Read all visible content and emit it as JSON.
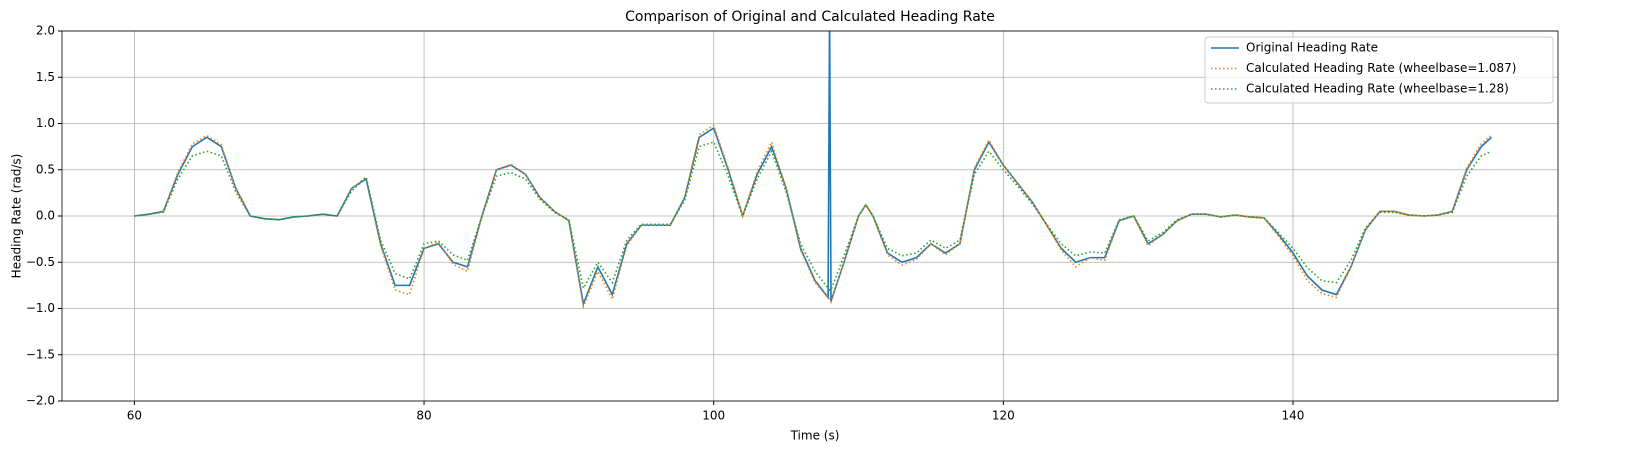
{
  "chart_data": {
    "type": "line",
    "title": "Comparison of Original and Calculated Heading Rate",
    "x_label": "Time (s)",
    "y_label": "Heading Rate (rad/s)",
    "x": [
      60,
      61,
      62,
      63,
      64,
      65,
      66,
      67,
      68,
      69,
      70,
      71,
      72,
      73,
      74,
      75,
      76,
      77,
      78,
      79,
      80,
      81,
      82,
      83,
      84,
      85,
      86,
      87,
      88,
      89,
      90,
      91,
      92,
      93,
      94,
      95,
      96,
      97,
      98,
      99,
      100,
      101,
      102,
      103,
      104,
      105,
      106,
      107,
      107.9,
      108,
      108.1,
      109,
      110,
      110.5,
      111,
      112,
      113,
      114,
      115,
      116,
      117,
      118,
      119,
      120,
      121,
      122,
      123,
      124,
      125,
      126,
      127,
      128,
      129,
      130,
      131,
      132,
      133,
      134,
      135,
      136,
      137,
      138,
      139,
      140,
      141,
      142,
      143,
      144,
      145,
      146,
      147,
      148,
      149,
      150,
      151,
      152,
      153,
      153.7
    ],
    "series": [
      {
        "name": "Original Heading Rate",
        "color": "#1f77b4",
        "style": "solid",
        "values": [
          0,
          0.02,
          0.05,
          0.45,
          0.75,
          0.85,
          0.75,
          0.3,
          0,
          -0.03,
          -0.04,
          -0.01,
          0,
          0.02,
          0,
          0.3,
          0.4,
          -0.3,
          -0.75,
          -0.75,
          -0.35,
          -0.3,
          -0.5,
          -0.55,
          0,
          0.5,
          0.55,
          0.45,
          0.2,
          0.05,
          -0.05,
          -0.95,
          -0.55,
          -0.85,
          -0.3,
          -0.1,
          -0.1,
          -0.1,
          0.2,
          0.85,
          0.95,
          0.5,
          0,
          0.45,
          0.75,
          0.3,
          -0.35,
          -0.7,
          -0.88,
          2.2,
          -0.92,
          -0.5,
          0,
          0.12,
          0,
          -0.4,
          -0.5,
          -0.45,
          -0.3,
          -0.4,
          -0.3,
          0.5,
          0.8,
          0.55,
          0.35,
          0.15,
          -0.1,
          -0.35,
          -0.5,
          -0.45,
          -0.45,
          -0.05,
          0,
          -0.3,
          -0.2,
          -0.05,
          0.02,
          0.02,
          -0.01,
          0.01,
          -0.01,
          -0.02,
          -0.2,
          -0.4,
          -0.65,
          -0.8,
          -0.85,
          -0.55,
          -0.15,
          0.05,
          0.05,
          0.01,
          0,
          0.01,
          0.05,
          0.5,
          0.75,
          0.85
        ]
      },
      {
        "name": "Calculated Heading Rate (wheelbase=1.087)",
        "color": "#ff7f0e",
        "style": "dotted",
        "values": [
          0,
          0.02,
          0.05,
          0.47,
          0.78,
          0.87,
          0.77,
          0.3,
          0,
          -0.03,
          -0.04,
          -0.01,
          0,
          0.02,
          0,
          0.3,
          0.42,
          -0.32,
          -0.8,
          -0.85,
          -0.35,
          -0.28,
          -0.52,
          -0.6,
          0,
          0.5,
          0.56,
          0.45,
          0.2,
          0.05,
          -0.05,
          -0.98,
          -0.6,
          -0.9,
          -0.32,
          -0.1,
          -0.1,
          -0.1,
          0.2,
          0.88,
          0.98,
          0.52,
          0,
          0.48,
          0.8,
          0.3,
          -0.37,
          -0.72,
          -0.88,
          -0.9,
          -0.93,
          -0.5,
          0,
          0.12,
          0,
          -0.42,
          -0.53,
          -0.47,
          -0.3,
          -0.42,
          -0.3,
          0.52,
          0.82,
          0.55,
          0.35,
          0.15,
          -0.1,
          -0.37,
          -0.55,
          -0.45,
          -0.48,
          -0.05,
          0,
          -0.32,
          -0.2,
          -0.05,
          0.02,
          0.02,
          -0.01,
          0.01,
          -0.01,
          -0.02,
          -0.22,
          -0.43,
          -0.7,
          -0.84,
          -0.88,
          -0.55,
          -0.15,
          0.05,
          0.05,
          0.01,
          0,
          0.01,
          0.05,
          0.52,
          0.78,
          0.87
        ]
      },
      {
        "name": "Calculated Heading Rate (wheelbase=1.28)",
        "color": "#2ca02c",
        "style": "dotted",
        "values": [
          0,
          0.02,
          0.04,
          0.4,
          0.65,
          0.7,
          0.65,
          0.26,
          0,
          -0.03,
          -0.04,
          -0.01,
          0,
          0.02,
          0,
          0.27,
          0.42,
          -0.26,
          -0.62,
          -0.68,
          -0.3,
          -0.27,
          -0.42,
          -0.48,
          0,
          0.43,
          0.47,
          0.4,
          0.18,
          0.04,
          -0.04,
          -0.78,
          -0.5,
          -0.72,
          -0.26,
          -0.09,
          -0.09,
          -0.09,
          0.17,
          0.75,
          0.8,
          0.43,
          0,
          0.4,
          0.7,
          0.26,
          -0.3,
          -0.6,
          -0.78,
          -0.8,
          -0.8,
          -0.43,
          0,
          0.12,
          0,
          -0.35,
          -0.43,
          -0.4,
          -0.26,
          -0.35,
          -0.26,
          0.45,
          0.7,
          0.5,
          0.32,
          0.13,
          -0.09,
          -0.3,
          -0.43,
          -0.39,
          -0.4,
          -0.04,
          0,
          -0.27,
          -0.18,
          -0.04,
          0.02,
          0.02,
          -0.01,
          0.01,
          -0.01,
          -0.02,
          -0.18,
          -0.35,
          -0.56,
          -0.7,
          -0.72,
          -0.48,
          -0.13,
          0.04,
          0.04,
          0.01,
          0,
          0.01,
          0.04,
          0.43,
          0.65,
          0.7
        ]
      }
    ],
    "xlim": [
      55,
      158.3
    ],
    "xticks": [
      60,
      80,
      100,
      120,
      140
    ],
    "ylim": [
      -2,
      2
    ],
    "yticks": [
      {
        "value": -2,
        "label": "−2.0"
      },
      {
        "value": -1.5,
        "label": "−1.5"
      },
      {
        "value": -1,
        "label": "−1.0"
      },
      {
        "value": -0.5,
        "label": "−0.5"
      },
      {
        "value": 0,
        "label": "0.0"
      },
      {
        "value": 0.5,
        "label": "0.5"
      },
      {
        "value": 1,
        "label": "1.0"
      },
      {
        "value": 1.5,
        "label": "1.5"
      },
      {
        "value": 2,
        "label": "2.0"
      }
    ],
    "grid": true,
    "legend": "upper right"
  }
}
